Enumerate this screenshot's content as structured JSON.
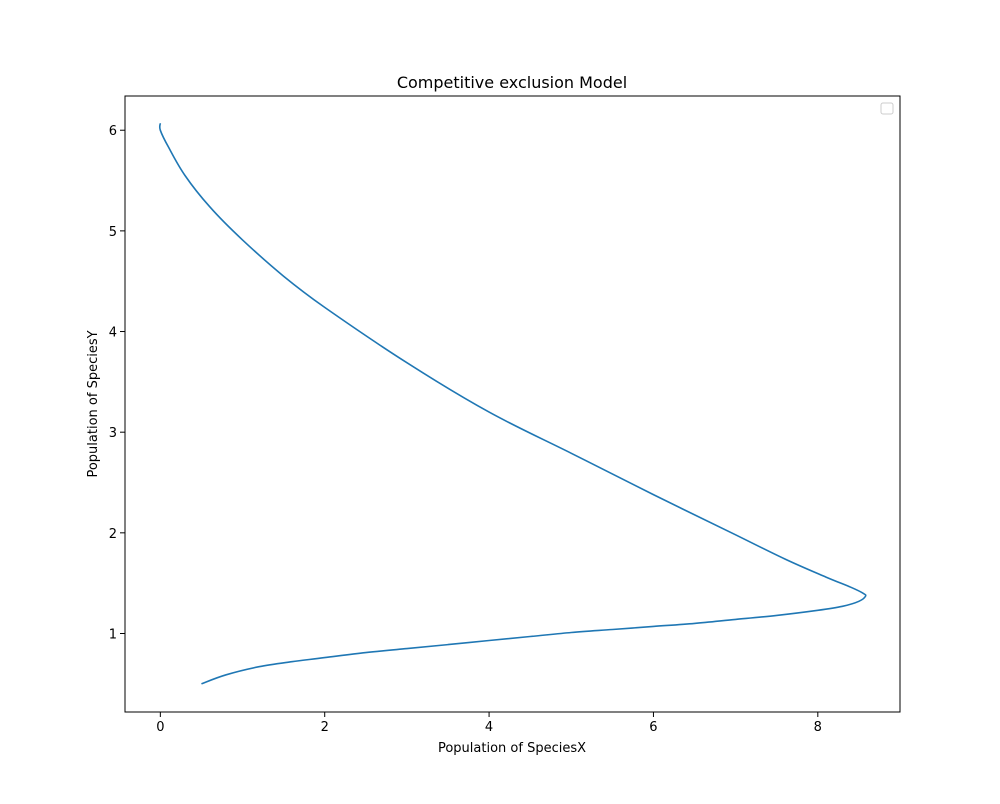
{
  "chart_data": {
    "type": "line",
    "title": "Competitive exclusion Model",
    "xlabel": "Population of SpeciesX",
    "ylabel": "Population of SpeciesY",
    "xlim": [
      -0.43,
      9.0
    ],
    "ylim": [
      0.22,
      6.34
    ],
    "xticks": [
      0,
      2,
      4,
      6,
      8
    ],
    "yticks": [
      1,
      2,
      3,
      4,
      5,
      6
    ],
    "xtick_labels": [
      "0",
      "2",
      "4",
      "6",
      "8"
    ],
    "ytick_labels": [
      "1",
      "2",
      "3",
      "4",
      "5",
      "6"
    ],
    "grid": false,
    "legend": {
      "placement": "top-right",
      "entries": []
    },
    "series": [
      {
        "color": "#1f77b4",
        "x": [
          0.5,
          0.8,
          1.2,
          1.6,
          2.0,
          2.5,
          3.0,
          3.5,
          4.0,
          4.5,
          5.0,
          5.5,
          6.0,
          6.5,
          7.0,
          7.5,
          8.0,
          8.3,
          8.5,
          8.58,
          8.55,
          8.4,
          8.1,
          7.6,
          7.0,
          6.0,
          5.0,
          4.0,
          3.0,
          2.0,
          1.5,
          1.0,
          0.6,
          0.3,
          0.1,
          0.0,
          0.0
        ],
        "y": [
          0.5,
          0.59,
          0.67,
          0.72,
          0.76,
          0.81,
          0.85,
          0.89,
          0.93,
          0.97,
          1.01,
          1.04,
          1.07,
          1.1,
          1.14,
          1.18,
          1.23,
          1.27,
          1.32,
          1.37,
          1.4,
          1.46,
          1.56,
          1.74,
          1.98,
          2.38,
          2.79,
          3.2,
          3.69,
          4.24,
          4.55,
          4.91,
          5.24,
          5.55,
          5.83,
          6.0,
          6.07
        ]
      }
    ]
  }
}
